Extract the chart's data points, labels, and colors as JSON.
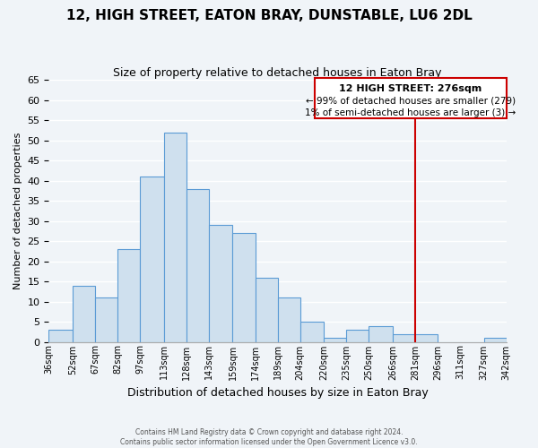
{
  "title": "12, HIGH STREET, EATON BRAY, DUNSTABLE, LU6 2DL",
  "subtitle": "Size of property relative to detached houses in Eaton Bray",
  "xlabel": "Distribution of detached houses by size in Eaton Bray",
  "ylabel": "Number of detached properties",
  "bin_labels": [
    "36sqm",
    "52sqm",
    "67sqm",
    "82sqm",
    "97sqm",
    "113sqm",
    "128sqm",
    "143sqm",
    "159sqm",
    "174sqm",
    "189sqm",
    "204sqm",
    "220sqm",
    "235sqm",
    "250sqm",
    "266sqm",
    "281sqm",
    "296sqm",
    "311sqm",
    "327sqm",
    "342sqm"
  ],
  "bar_values": [
    3,
    14,
    11,
    23,
    41,
    52,
    38,
    29,
    27,
    16,
    11,
    5,
    1,
    3,
    4,
    2,
    2,
    0,
    0,
    1
  ],
  "bar_color": "#cfe0ee",
  "bar_edge_color": "#5b9bd5",
  "bin_edges": [
    36,
    52,
    67,
    82,
    97,
    113,
    128,
    143,
    159,
    174,
    189,
    204,
    220,
    235,
    250,
    266,
    281,
    296,
    311,
    327,
    342
  ],
  "vline_x": 281,
  "vline_color": "#cc0000",
  "ylim": [
    0,
    65
  ],
  "yticks": [
    0,
    5,
    10,
    15,
    20,
    25,
    30,
    35,
    40,
    45,
    50,
    55,
    60,
    65
  ],
  "annotation_title": "12 HIGH STREET: 276sqm",
  "annotation_line1": "← 99% of detached houses are smaller (279)",
  "annotation_line2": "1% of semi-detached houses are larger (3) →",
  "footer1": "Contains HM Land Registry data © Crown copyright and database right 2024.",
  "footer2": "Contains public sector information licensed under the Open Government Licence v3.0.",
  "background_color": "#f0f4f8",
  "grid_color": "#ffffff"
}
